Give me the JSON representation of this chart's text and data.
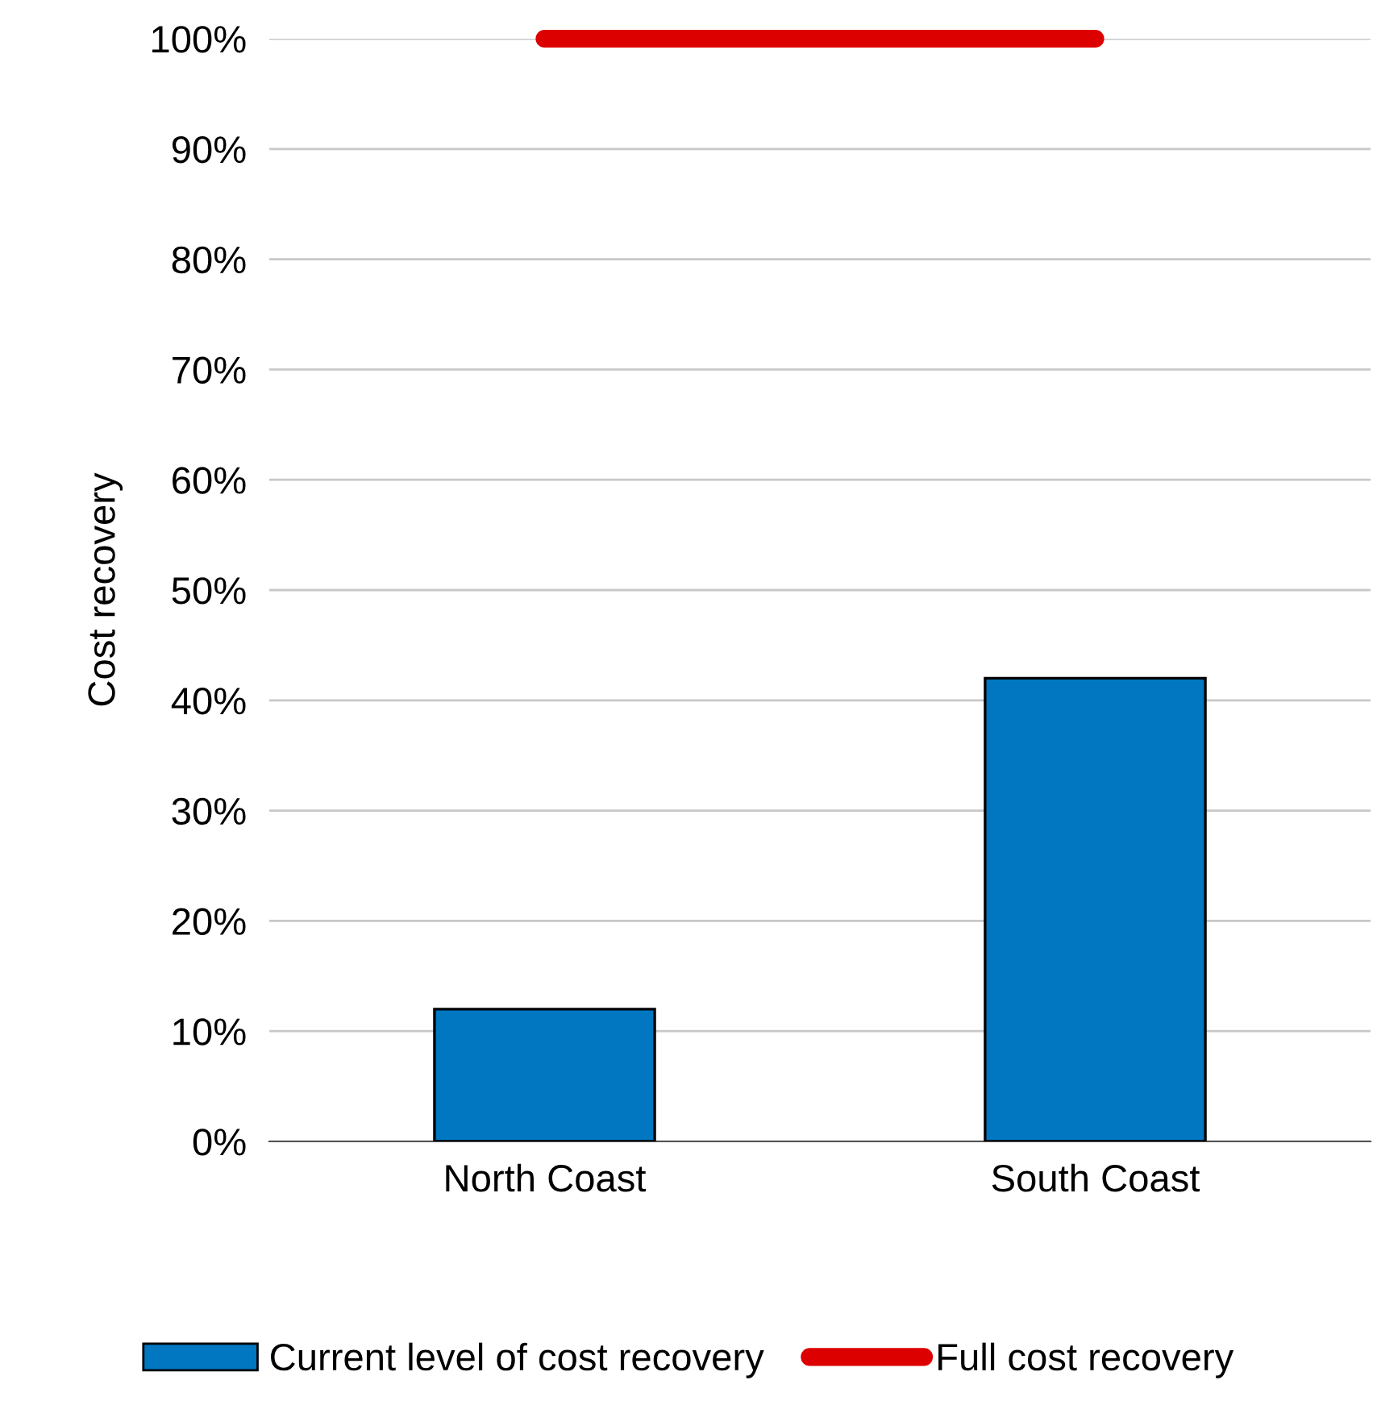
{
  "chart_data": {
    "type": "bar",
    "ylabel": "Cost recovery",
    "categories": [
      "North Coast",
      "South Coast"
    ],
    "series": [
      {
        "name": "Current level of cost recovery",
        "color": "#0077c0",
        "values": [
          12,
          42
        ]
      },
      {
        "name": "Full cost recovery",
        "type": "line",
        "color": "#dd0000",
        "values": [
          100,
          100
        ]
      }
    ],
    "ylim": [
      0,
      100
    ],
    "yticks": [
      {
        "value": 0,
        "label": "0%"
      },
      {
        "value": 10,
        "label": "10%"
      },
      {
        "value": 20,
        "label": "20%"
      },
      {
        "value": 30,
        "label": "30%"
      },
      {
        "value": 40,
        "label": "40%"
      },
      {
        "value": 50,
        "label": "50%"
      },
      {
        "value": 60,
        "label": "60%"
      },
      {
        "value": 70,
        "label": "70%"
      },
      {
        "value": 80,
        "label": "80%"
      },
      {
        "value": 90,
        "label": "90%"
      },
      {
        "value": 100,
        "label": "100%"
      }
    ],
    "grid": "y",
    "legend": "bottom",
    "line_style": "solid"
  }
}
